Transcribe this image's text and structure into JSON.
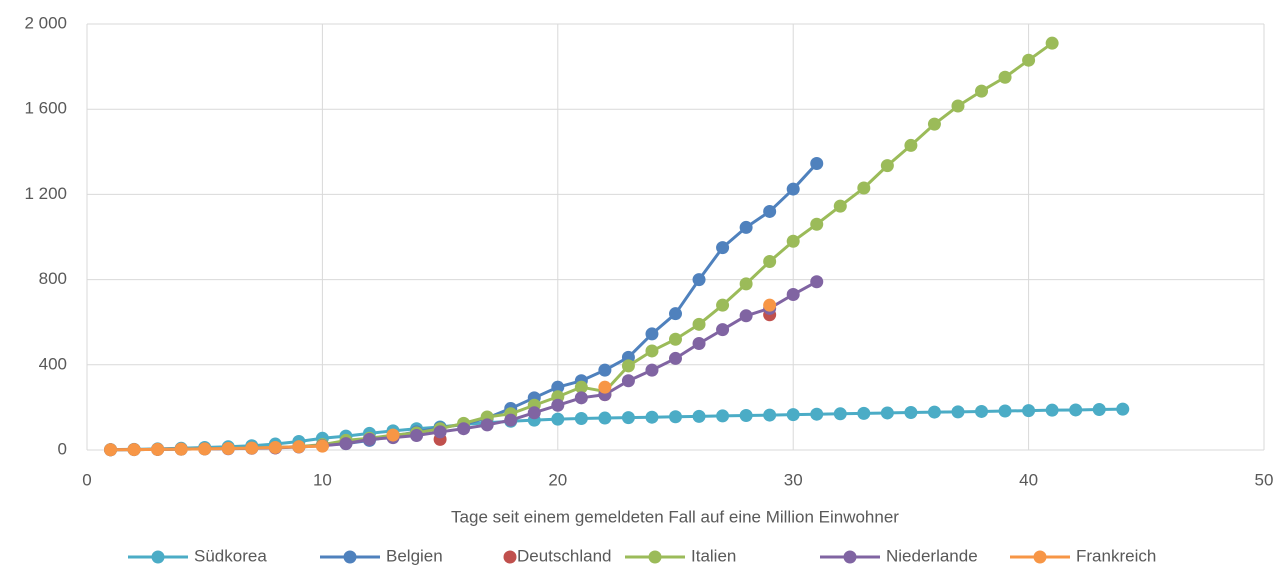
{
  "chart_data": {
    "type": "line",
    "x_label": "Tage seit einem gemeldeten Fall auf eine Million Einwohner",
    "xlim": [
      0,
      50
    ],
    "xticks": [
      0,
      10,
      20,
      30,
      40,
      50
    ],
    "ylim": [
      0,
      2000
    ],
    "yticks": [
      0,
      400,
      800,
      {
        "value": 1200,
        "label": "1 200"
      },
      {
        "value": 1600,
        "label": "1 600"
      },
      {
        "value": 2000,
        "label": "2 000"
      }
    ],
    "grid": true,
    "legend": "bottom",
    "series": [
      {
        "name": "Südkorea",
        "color": "#4bacc6",
        "line": true,
        "x": [
          1,
          2,
          3,
          4,
          5,
          6,
          7,
          8,
          9,
          10,
          11,
          12,
          13,
          14,
          15,
          16,
          17,
          18,
          19,
          20,
          21,
          22,
          23,
          24,
          25,
          26,
          27,
          28,
          29,
          30,
          31,
          32,
          33,
          34,
          35,
          36,
          37,
          38,
          39,
          40,
          41,
          42,
          43,
          44
        ],
        "values": [
          2,
          3,
          5,
          8,
          12,
          15,
          20,
          28,
          40,
          55,
          65,
          78,
          90,
          100,
          108,
          120,
          128,
          135,
          140,
          145,
          148,
          150,
          152,
          154,
          156,
          158,
          160,
          162,
          164,
          166,
          168,
          170,
          172,
          174,
          176,
          178,
          179,
          181,
          183,
          185,
          187,
          188,
          190,
          192
        ]
      },
      {
        "name": "Belgien",
        "color": "#4f81bd",
        "line": true,
        "x": [
          1,
          2,
          3,
          4,
          5,
          6,
          7,
          8,
          9,
          10,
          11,
          12,
          13,
          14,
          15,
          16,
          17,
          18,
          19,
          20,
          21,
          22,
          23,
          24,
          25,
          26,
          27,
          28,
          29,
          30,
          31
        ],
        "values": [
          1,
          2,
          3,
          4,
          5,
          7,
          9,
          12,
          16,
          22,
          30,
          45,
          65,
          85,
          105,
          120,
          150,
          195,
          245,
          295,
          325,
          375,
          435,
          545,
          640,
          800,
          950,
          1045,
          1120,
          1225,
          1345
        ]
      },
      {
        "name": "Deutschland",
        "color": "#c0504d",
        "line": false,
        "x": [
          8,
          15,
          22,
          29
        ],
        "values": [
          10,
          50,
          260,
          635
        ]
      },
      {
        "name": "Italien",
        "color": "#9bbb59",
        "line": true,
        "x": [
          1,
          2,
          3,
          4,
          5,
          6,
          7,
          8,
          9,
          10,
          11,
          12,
          13,
          14,
          15,
          16,
          17,
          18,
          19,
          20,
          21,
          22,
          23,
          24,
          25,
          26,
          27,
          28,
          29,
          30,
          31,
          32,
          33,
          34,
          35,
          36,
          37,
          38,
          39,
          40,
          41
        ],
        "values": [
          1,
          2,
          3,
          4,
          5,
          7,
          9,
          12,
          16,
          25,
          45,
          55,
          70,
          80,
          100,
          125,
          155,
          170,
          210,
          250,
          295,
          275,
          395,
          465,
          520,
          590,
          680,
          780,
          885,
          980,
          1060,
          1145,
          1230,
          1335,
          1430,
          1530,
          1615,
          1685,
          1750,
          1830,
          1910
        ]
      },
      {
        "name": "Niederlande",
        "color": "#8064a2",
        "line": true,
        "x": [
          1,
          2,
          3,
          4,
          5,
          6,
          7,
          8,
          9,
          10,
          11,
          12,
          13,
          14,
          15,
          16,
          17,
          18,
          19,
          20,
          21,
          22,
          23,
          24,
          25,
          26,
          27,
          28,
          29,
          30,
          31
        ],
        "values": [
          1,
          2,
          3,
          4,
          5,
          6,
          8,
          10,
          14,
          20,
          30,
          50,
          58,
          68,
          85,
          100,
          118,
          140,
          175,
          210,
          245,
          260,
          325,
          375,
          430,
          500,
          565,
          630,
          665,
          730,
          790
        ]
      },
      {
        "name": "Frankreich",
        "color": "#f79646",
        "line": true,
        "x": [
          1,
          2,
          3,
          4,
          5,
          6,
          7,
          8,
          9,
          10,
          12,
          13,
          21,
          22,
          28,
          29
        ],
        "values": [
          1,
          2,
          3,
          4,
          5,
          7,
          9,
          12,
          15,
          18,
          null,
          70,
          null,
          295,
          null,
          680
        ]
      }
    ]
  }
}
